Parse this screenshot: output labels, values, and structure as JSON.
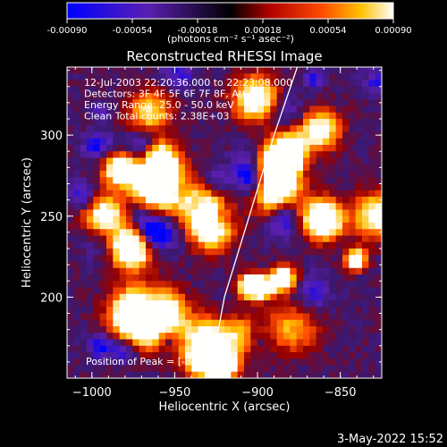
{
  "chart_data": {
    "type": "heatmap",
    "title": "Reconstructed RHESSI Image",
    "xlabel": "Heliocentric X (arcsec)",
    "ylabel": "Heliocentric Y (arcsec)",
    "xlim": [
      -1015,
      -825
    ],
    "ylim": [
      150,
      342
    ],
    "xticks": [
      -1000,
      -950,
      -900,
      -850
    ],
    "yticks": [
      200,
      250,
      300
    ],
    "colorbar": {
      "min": -0.0009,
      "max": 0.0009,
      "ticks": [
        -0.0009,
        -0.00054,
        -0.00018,
        0.00018,
        0.00054,
        0.0009
      ],
      "tick_labels": [
        "-0.00090",
        "-0.00054",
        "-0.00018",
        "0.00018",
        "0.00054",
        "0.00090"
      ],
      "unit_label": "(photons cm⁻² s⁻¹ asec⁻²)"
    },
    "annotations": [
      "12-Jul-2003 22:20:36.000 to 22:23:08.000",
      "Detectors: 3F 4F 5F 6F 7F 8F, Att 0",
      "Energy Range: 25.0 - 50.0 keV",
      "Clean     Total counts: 2.38E+03"
    ],
    "peak_label": "Position of Peak = [-881,186]",
    "peak": [
      -881,
      186
    ],
    "limb": [
      [
        -929,
        150
      ],
      [
        -920,
        200
      ],
      [
        -905,
        250
      ],
      [
        -890,
        300
      ],
      [
        -876,
        342
      ]
    ],
    "grid": false
  },
  "footer": {
    "date": "3-May-2022 15:52"
  }
}
